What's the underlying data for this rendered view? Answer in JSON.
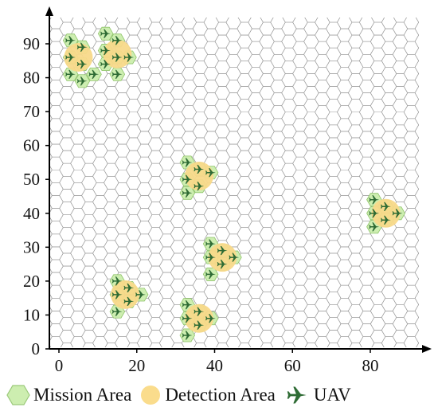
{
  "chart_data": {
    "type": "scatter",
    "title": "",
    "xlabel": "",
    "ylabel": "",
    "xlim": [
      -2,
      95
    ],
    "ylim": [
      0,
      98
    ],
    "x_ticks": [
      "0",
      "20",
      "40",
      "60",
      "80"
    ],
    "y_ticks": [
      "0",
      "10",
      "20",
      "30",
      "40",
      "50",
      "60",
      "70",
      "80",
      "90"
    ],
    "grid": "hexagonal",
    "legend_position": "bottom",
    "legend": [
      {
        "label": "Mission Area",
        "swatch": "hexagon",
        "color": "#cdeeb0"
      },
      {
        "label": "Detection Area",
        "swatch": "circle",
        "color": "#fadc8c"
      },
      {
        "label": "UAV",
        "swatch": "plane-icon",
        "color": "#2e6b34"
      }
    ],
    "colors": {
      "mission_area": "#cdeeb0",
      "mission_area_stroke": "#8fc46a",
      "detection_area": "#f8d98a",
      "uav": "#2e6b34",
      "grid": "#9a9a9a",
      "axis": "#000000"
    },
    "series": [
      {
        "name": "UAV",
        "points": [
          [
            3,
            91
          ],
          [
            6,
            89
          ],
          [
            3,
            86
          ],
          [
            6,
            84
          ],
          [
            3,
            81
          ],
          [
            9,
            81
          ],
          [
            6,
            79
          ],
          [
            12,
            93
          ],
          [
            15,
            91
          ],
          [
            12,
            88
          ],
          [
            15,
            86
          ],
          [
            18,
            86
          ],
          [
            12,
            84
          ],
          [
            15,
            81
          ],
          [
            33,
            55
          ],
          [
            36,
            53
          ],
          [
            39,
            52
          ],
          [
            33,
            50
          ],
          [
            36,
            48
          ],
          [
            33,
            46
          ],
          [
            81,
            44
          ],
          [
            84,
            42
          ],
          [
            81,
            40
          ],
          [
            87,
            40
          ],
          [
            84,
            38
          ],
          [
            81,
            36
          ],
          [
            39,
            31
          ],
          [
            42,
            29
          ],
          [
            39,
            27
          ],
          [
            45,
            27
          ],
          [
            42,
            25
          ],
          [
            39,
            22
          ],
          [
            15,
            20
          ],
          [
            18,
            18
          ],
          [
            15,
            16
          ],
          [
            21,
            16
          ],
          [
            18,
            14
          ],
          [
            15,
            11
          ],
          [
            33,
            13
          ],
          [
            36,
            11
          ],
          [
            33,
            9
          ],
          [
            39,
            9
          ],
          [
            36,
            7
          ],
          [
            33,
            4
          ]
        ]
      },
      {
        "name": "Detection Area",
        "points": [
          [
            5,
            86
          ],
          [
            15,
            87
          ],
          [
            36,
            51
          ],
          [
            84,
            40
          ],
          [
            42,
            27
          ],
          [
            17,
            16
          ],
          [
            36,
            9
          ]
        ]
      }
    ]
  }
}
